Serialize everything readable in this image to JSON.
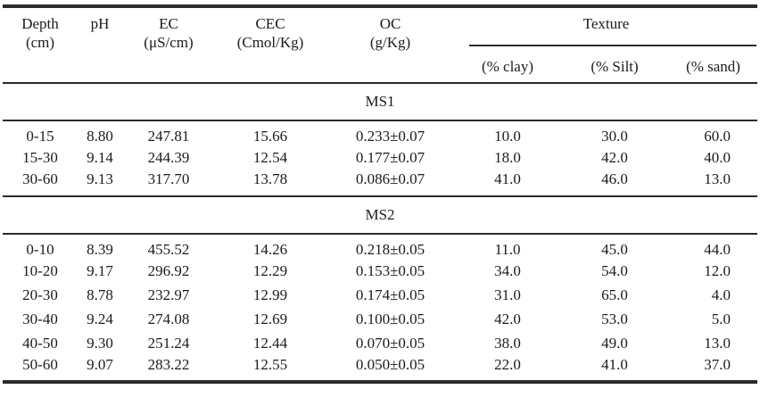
{
  "table": {
    "columns": [
      {
        "label": "Depth",
        "sub": "(cm)"
      },
      {
        "label": "pH",
        "sub": ""
      },
      {
        "label": "EC",
        "sub": "(μS/cm)"
      },
      {
        "label": "CEC",
        "sub": "(Cmol/Kg)"
      },
      {
        "label": "OC",
        "sub": "(g/Kg)"
      }
    ],
    "texture_group": {
      "label": "Texture",
      "subcolumns": [
        "(% clay)",
        "(% Silt)",
        "(% sand)"
      ]
    },
    "sections": [
      {
        "label": "MS1",
        "rows": [
          [
            "0-15",
            "8.80",
            "247.81",
            "15.66",
            "0.233±0.07",
            "10.0",
            "30.0",
            "60.0"
          ],
          [
            "15-30",
            "9.14",
            "244.39",
            "12.54",
            "0.177±0.07",
            "18.0",
            "42.0",
            "40.0"
          ],
          [
            "30-60",
            "9.13",
            "317.70",
            "13.78",
            "0.086±0.07",
            "41.0",
            "46.0",
            "13.0"
          ]
        ]
      },
      {
        "label": "MS2",
        "rows": [
          [
            "0-10",
            "8.39",
            "455.52",
            "14.26",
            "0.218±0.05",
            "11.0",
            "45.0",
            "44.0"
          ],
          [
            "10-20",
            "9.17",
            "296.92",
            "12.29",
            "0.153±0.05",
            "34.0",
            "54.0",
            "12.0"
          ],
          [
            "20-30",
            "8.78",
            "232.97",
            "12.99",
            "0.174±0.05",
            "31.0",
            "65.0",
            "4.0"
          ],
          [
            "30-40",
            "9.24",
            "274.08",
            "12.69",
            "0.100±0.05",
            "42.0",
            "53.0",
            "5.0"
          ],
          [
            "40-50",
            "9.30",
            "251.24",
            "12.44",
            "0.070±0.05",
            "38.0",
            "49.0",
            "13.0"
          ],
          [
            "50-60",
            "9.07",
            "283.22",
            "12.55",
            "0.050±0.05",
            "22.0",
            "41.0",
            "37.0"
          ]
        ]
      }
    ]
  },
  "colors": {
    "text": "#1b1b1b",
    "rule": "#2b2b2b",
    "background": "#ffffff"
  }
}
